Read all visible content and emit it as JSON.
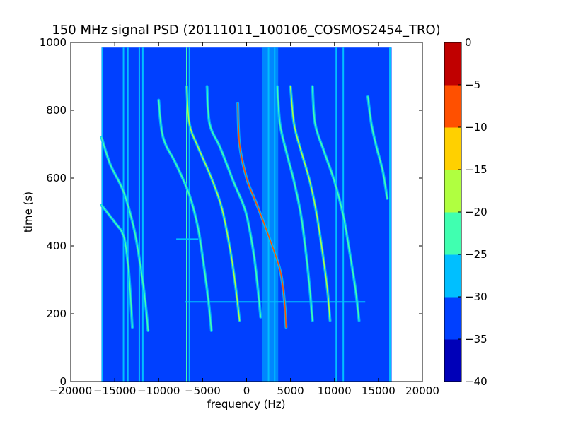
{
  "chart_data": {
    "type": "heatmap",
    "title": "150 MHz signal PSD (20111011_100106_COSMOS2454_TRO)",
    "xlabel": "frequency (Hz)",
    "ylabel": "time (s)",
    "xlim": [
      -20000,
      20000
    ],
    "ylim": [
      0,
      1000
    ],
    "xticks": [
      -20000,
      -15000,
      -10000,
      -5000,
      0,
      5000,
      10000,
      15000,
      20000
    ],
    "xtick_labels": [
      "−20000",
      "−15000",
      "−10000",
      "−5000",
      "0",
      "5000",
      "10000",
      "15000",
      "20000"
    ],
    "yticks": [
      0,
      200,
      400,
      600,
      800,
      1000
    ],
    "ytick_labels": [
      "0",
      "200",
      "400",
      "600",
      "800",
      "1000"
    ],
    "data_extent": {
      "x": [
        -16500,
        16500
      ],
      "y": [
        0,
        985
      ]
    },
    "background_level": -32.5,
    "colorbar": {
      "levels": [
        -40,
        -35,
        -30,
        -25,
        -20,
        -15,
        -10,
        -5,
        0
      ],
      "tick_labels": [
        "−40",
        "−35",
        "−30",
        "−25",
        "−20",
        "−15",
        "−10",
        "−5",
        "0"
      ],
      "colors": [
        "#0000b8",
        "#0040ff",
        "#00bfff",
        "#40ffb0",
        "#b0ff40",
        "#ffd000",
        "#ff5000",
        "#c00000"
      ]
    },
    "vertical_lines": [
      {
        "freq": -16400,
        "level": -27.5
      },
      {
        "freq": -14000,
        "level": -27.5
      },
      {
        "freq": -13500,
        "level": -27.5
      },
      {
        "freq": -12200,
        "level": -27.5
      },
      {
        "freq": -11800,
        "level": -27.5
      },
      {
        "freq": -6800,
        "level": -22.5
      },
      {
        "freq": -6500,
        "level": -27.5
      },
      {
        "freq": 2500,
        "level": -27.5
      },
      {
        "freq": 3200,
        "level": -27.5
      },
      {
        "freq": 10200,
        "level": -27.5
      },
      {
        "freq": 11000,
        "level": -27.5
      },
      {
        "freq": 16300,
        "level": -27.5
      }
    ],
    "center_band": {
      "x": [
        1800,
        3600
      ],
      "level": -27.5
    },
    "horizontal_lines": [
      {
        "time": 235,
        "x": [
          -7000,
          13500
        ],
        "level": -27.5
      },
      {
        "time": 420,
        "x": [
          -8000,
          -5500
        ],
        "level": -27.5
      }
    ],
    "traces": [
      {
        "points": [
          [
            -1000,
            820
          ],
          [
            -800,
            700
          ],
          [
            0,
            600
          ],
          [
            1200,
            520
          ],
          [
            2500,
            430
          ],
          [
            3800,
            330
          ],
          [
            4300,
            240
          ],
          [
            4500,
            160
          ]
        ],
        "level": -10
      },
      {
        "points": [
          [
            -6800,
            870
          ],
          [
            -6500,
            760
          ],
          [
            -5500,
            690
          ],
          [
            -4000,
            600
          ],
          [
            -2800,
            510
          ],
          [
            -1800,
            380
          ],
          [
            -1200,
            270
          ],
          [
            -800,
            180
          ]
        ],
        "level": -17.5
      },
      {
        "points": [
          [
            5000,
            870
          ],
          [
            5400,
            760
          ],
          [
            6200,
            680
          ],
          [
            7200,
            590
          ],
          [
            8000,
            490
          ],
          [
            8700,
            370
          ],
          [
            9200,
            270
          ],
          [
            9500,
            180
          ]
        ],
        "level": -17.5
      },
      {
        "points": [
          [
            -4500,
            870
          ],
          [
            -4200,
            760
          ],
          [
            -3000,
            690
          ],
          [
            -1500,
            590
          ],
          [
            -100,
            500
          ],
          [
            800,
            380
          ],
          [
            1300,
            270
          ],
          [
            1600,
            190
          ]
        ],
        "level": -22.5
      },
      {
        "points": [
          [
            3500,
            870
          ],
          [
            3800,
            760
          ],
          [
            4500,
            680
          ],
          [
            5400,
            590
          ],
          [
            6200,
            490
          ],
          [
            6800,
            370
          ],
          [
            7200,
            270
          ],
          [
            7500,
            180
          ]
        ],
        "level": -22.5
      },
      {
        "points": [
          [
            -10000,
            830
          ],
          [
            -9500,
            720
          ],
          [
            -8000,
            640
          ],
          [
            -6500,
            550
          ],
          [
            -5500,
            450
          ],
          [
            -4800,
            330
          ],
          [
            -4300,
            230
          ],
          [
            -4000,
            150
          ]
        ],
        "level": -25
      },
      {
        "points": [
          [
            7500,
            870
          ],
          [
            7800,
            760
          ],
          [
            8800,
            680
          ],
          [
            10000,
            590
          ],
          [
            11000,
            490
          ],
          [
            11800,
            370
          ],
          [
            12400,
            270
          ],
          [
            12800,
            180
          ]
        ],
        "level": -25
      },
      {
        "points": [
          [
            -16500,
            720
          ],
          [
            -15500,
            640
          ],
          [
            -14000,
            560
          ],
          [
            -12800,
            450
          ],
          [
            -12000,
            330
          ],
          [
            -11500,
            230
          ],
          [
            -11200,
            150
          ]
        ],
        "level": -25
      },
      {
        "points": [
          [
            -16500,
            520
          ],
          [
            -15000,
            470
          ],
          [
            -14000,
            430
          ],
          [
            -13500,
            350
          ],
          [
            -13200,
            250
          ],
          [
            -13000,
            160
          ]
        ],
        "level": -25
      },
      {
        "points": [
          [
            13800,
            840
          ],
          [
            14200,
            760
          ],
          [
            14800,
            690
          ],
          [
            15500,
            620
          ],
          [
            16000,
            540
          ]
        ],
        "level": -25
      }
    ]
  }
}
